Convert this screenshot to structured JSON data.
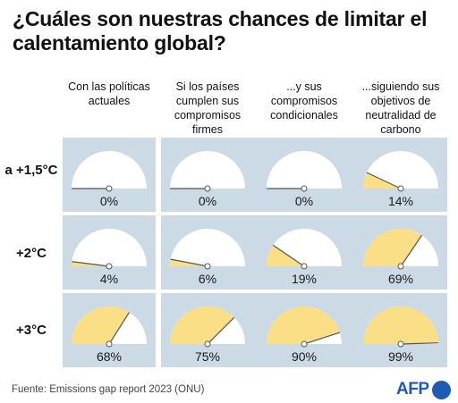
{
  "title": "¿Cuáles son nuestras chances de limitar el calentamiento global?",
  "footer": "Fuente: Emissions gap report 2023 (ONU)",
  "logo_text": "AFP",
  "colors": {
    "panel": "#cbdae5",
    "gauge_empty": "#ffffff",
    "gauge_fill": "#fbdf86",
    "needle": "#555555"
  },
  "chart_data": {
    "type": "gauge-grid",
    "unit": "%",
    "columns": [
      "Con las políticas actuales",
      "Si los países cumplen sus compromisos firmes",
      "...y sus compromisos condicionales",
      "...siguiendo sus objetivos de neutralidad de carbono"
    ],
    "rows": [
      {
        "label": "a +1,5°C",
        "values": [
          0,
          0,
          0,
          14
        ]
      },
      {
        "label": "+2°C",
        "values": [
          4,
          6,
          19,
          69
        ]
      },
      {
        "label": "+3°C",
        "values": [
          68,
          75,
          90,
          99
        ]
      }
    ],
    "value_labels": [
      [
        "0%",
        "0%",
        "0%",
        "14%"
      ],
      [
        "4%",
        "6%",
        "19%",
        "69%"
      ],
      [
        "68%",
        "75%",
        "90%",
        "99%"
      ]
    ],
    "range": [
      0,
      100
    ]
  }
}
